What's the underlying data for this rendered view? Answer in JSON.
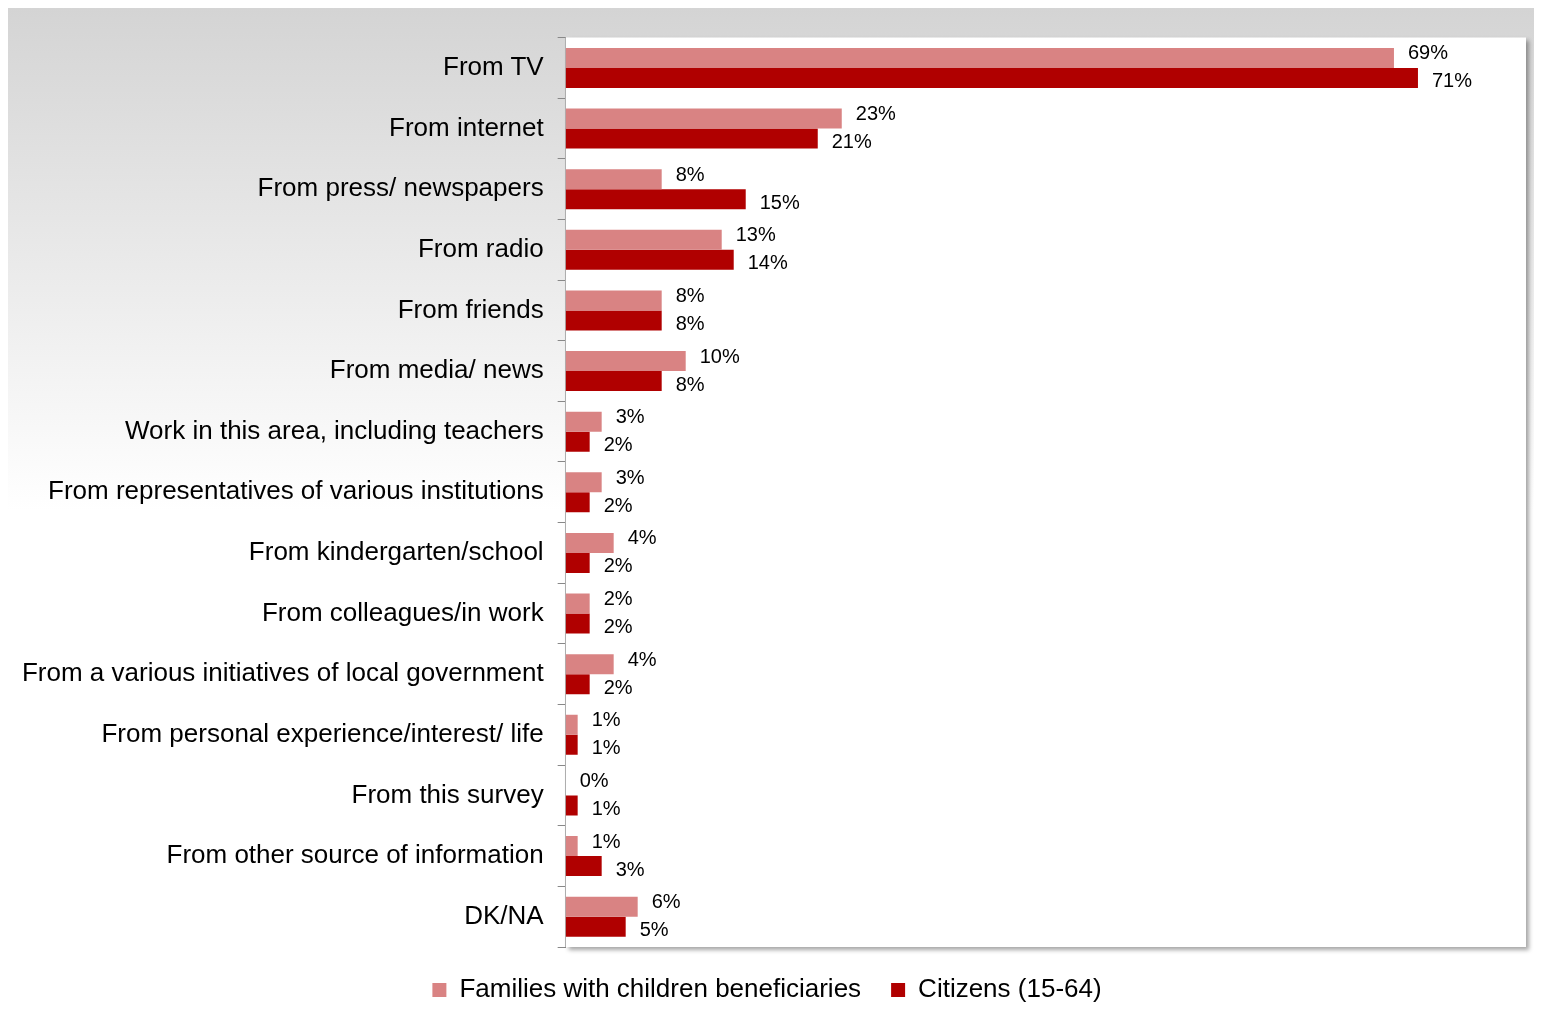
{
  "chart_data": {
    "type": "bar",
    "orientation": "horizontal",
    "legend": "bottom",
    "grid": false,
    "categories": [
      "From TV",
      "From internet",
      "From press/ newspapers",
      "From radio",
      "From friends",
      "From media/ news",
      "Work in this area, including teachers",
      "From representatives of various institutions",
      "From kindergarten/school",
      "From colleagues/in work",
      "From a various initiatives of local government",
      "From personal experience/interest/ life",
      "From this survey",
      "From other source of information",
      "DK/NA"
    ],
    "series": [
      {
        "name": "Families with children beneficiaries",
        "color": "#d98383",
        "values": [
          69,
          23,
          8,
          13,
          8,
          10,
          3,
          3,
          4,
          2,
          4,
          1,
          0,
          1,
          6
        ],
        "value_labels": [
          "69%",
          "23%",
          "8%",
          "13%",
          "8%",
          "10%",
          "3%",
          "3%",
          "4%",
          "2%",
          "4%",
          "1%",
          "0%",
          "1%",
          "6%"
        ]
      },
      {
        "name": "Citizens (15-64)",
        "color": "#b00000",
        "values": [
          71,
          21,
          15,
          14,
          8,
          8,
          2,
          2,
          2,
          2,
          2,
          1,
          1,
          3,
          5
        ],
        "value_labels": [
          "71%",
          "21%",
          "15%",
          "14%",
          "8%",
          "8%",
          "2%",
          "2%",
          "2%",
          "2%",
          "2%",
          "1%",
          "1%",
          "3%",
          "5%"
        ]
      }
    ]
  }
}
